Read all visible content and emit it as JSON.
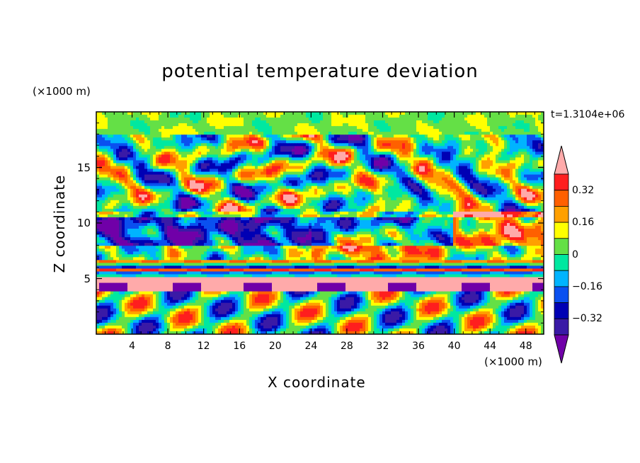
{
  "chart_data": {
    "type": "heatmap",
    "title": "potential temperature deviation",
    "xlabel": "X coordinate",
    "ylabel": "Z coordinate",
    "x_unit": "(×1000 m)",
    "y_unit": "(×1000 m)",
    "time_label": "t=1.3104e+06",
    "xlim": [
      0,
      50
    ],
    "ylim": [
      0,
      20
    ],
    "x_ticks": [
      4,
      8,
      12,
      16,
      20,
      24,
      28,
      32,
      36,
      40,
      44,
      48
    ],
    "x_tick_labels": [
      "4",
      "8",
      "12",
      "16",
      "20",
      "24",
      "28",
      "32",
      "36",
      "40",
      "44",
      "48"
    ],
    "y_ticks": [
      5,
      10,
      15
    ],
    "y_tick_labels": [
      "5",
      "10",
      "15"
    ],
    "colorbar": {
      "levels": [
        -0.4,
        -0.32,
        -0.24,
        -0.16,
        -0.08,
        0,
        0.08,
        0.16,
        0.24,
        0.32,
        0.4
      ],
      "tick_values": [
        0.32,
        0.16,
        0,
        -0.16,
        -0.32
      ],
      "tick_labels": [
        "0.32",
        "0.16",
        "0",
        "−0.16",
        "−0.32"
      ],
      "colors": [
        "#7000a8",
        "#3a1aa6",
        "#0000b4",
        "#0a50f0",
        "#00b4ff",
        "#00e8a0",
        "#64e046",
        "#ffff00",
        "#ffa000",
        "#ff6000",
        "#ff1e1e",
        "#ffaaaa"
      ],
      "extend": "both"
    },
    "fields": {
      "mid_band_high_region": "pink (≥ 0.4) patches near x 24-50, z 6-11",
      "layer_near_z4": "alternating pink / purple band around z 4-5",
      "upper_region": "mixed warm/cold eddies z 10-18, green-yellow near top"
    }
  },
  "colors": {
    "background": "#ffffff",
    "axes": "#000000"
  }
}
